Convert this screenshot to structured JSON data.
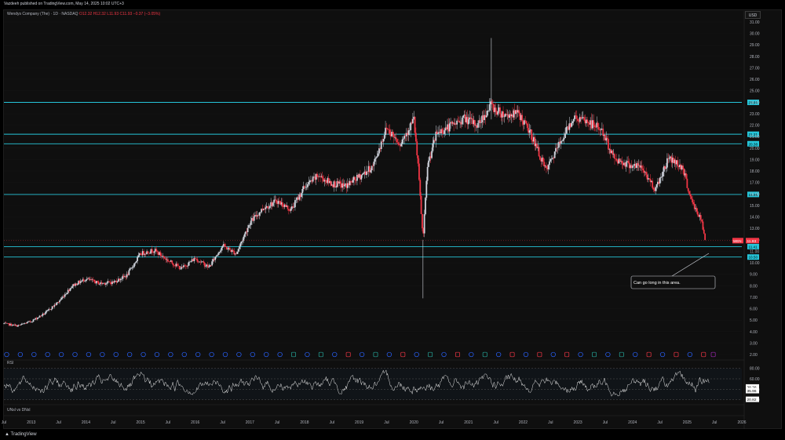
{
  "header": {
    "caption": "Vazdeeh published on TradingView.com, May 14, 2025 10:02 UTC+3",
    "symbol": "Wendys Company (The) · 1D · NASDAQ",
    "ohlc": "O12.32 H12.32 L11.93 C11.93 −0.37 (−3.05%)",
    "currency_button": "USD"
  },
  "colors": {
    "level_line": "#26c6da",
    "candle_up": "#cfd3dc",
    "candle_down": "#f23645",
    "price_tag": "#f23645",
    "rsi_line": "#e6e6e6"
  },
  "icons": [
    "tradingview-logo-icon"
  ],
  "footer": {
    "brand": "TradingView",
    "rsi_label": "RSI",
    "lower_pane_label": "UNsl vs DNsl"
  },
  "annotation": {
    "text": "Can go long in this area."
  },
  "price_axis": {
    "ticks": [
      "31.00",
      "30.00",
      "29.00",
      "28.00",
      "27.00",
      "26.00",
      "25.00",
      "24.00",
      "23.00",
      "22.00",
      "21.00",
      "20.00",
      "19.00",
      "18.00",
      "17.00",
      "16.00",
      "15.00",
      "14.00",
      "13.00",
      "12.00",
      "11.00",
      "10.00",
      "9.00",
      "8.00",
      "7.00",
      "6.00",
      "5.00",
      "4.00",
      "3.00",
      "2.00"
    ],
    "current_price_label": "11.93",
    "current_symbol_tag": "WEN"
  },
  "rsi_axis": {
    "ticks": [
      "80.00",
      "60.00",
      "40.00",
      "20.00"
    ],
    "value_labels": [
      "38.38",
      "35.96",
      "20.82"
    ]
  },
  "time_axis": {
    "labels": [
      "Jul",
      "2013",
      "Jul",
      "2014",
      "Jul",
      "2015",
      "Jul",
      "2016",
      "Jul",
      "2017",
      "Jul",
      "2018",
      "Jul",
      "2019",
      "Jul",
      "2020",
      "Jul",
      "2021",
      "Jul",
      "2022",
      "Jul",
      "2023",
      "Jul",
      "2024",
      "Jul",
      "2025",
      "Jul",
      "2026"
    ]
  },
  "chart_data": {
    "type": "line",
    "title": "Wendys Company (The) · 1D · NASDAQ",
    "xlabel": "",
    "ylabel": "",
    "ylim": [
      2,
      31
    ],
    "x_range": [
      "2012-07",
      "2026-01"
    ],
    "price_series": {
      "x": [
        "2012-07",
        "2012-10",
        "2013-01",
        "2013-04",
        "2013-07",
        "2013-10",
        "2014-01",
        "2014-04",
        "2014-07",
        "2014-10",
        "2015-01",
        "2015-04",
        "2015-07",
        "2015-10",
        "2016-01",
        "2016-04",
        "2016-07",
        "2016-10",
        "2017-01",
        "2017-04",
        "2017-07",
        "2017-10",
        "2018-01",
        "2018-04",
        "2018-07",
        "2018-10",
        "2019-01",
        "2019-04",
        "2019-07",
        "2019-10",
        "2020-01",
        "2020-02",
        "2020-03",
        "2020-04",
        "2020-06",
        "2020-09",
        "2020-12",
        "2021-03",
        "2021-06",
        "2021-07",
        "2021-09",
        "2021-12",
        "2022-03",
        "2022-06",
        "2022-09",
        "2022-12",
        "2023-03",
        "2023-06",
        "2023-09",
        "2023-12",
        "2024-03",
        "2024-06",
        "2024-09",
        "2024-12",
        "2025-02",
        "2025-04",
        "2025-05"
      ],
      "values": [
        4.7,
        4.5,
        4.9,
        5.6,
        6.6,
        8.0,
        8.6,
        8.2,
        8.3,
        8.9,
        10.8,
        11.1,
        10.2,
        9.5,
        10.4,
        9.6,
        11.5,
        10.8,
        13.5,
        14.8,
        15.4,
        14.6,
        16.6,
        17.6,
        16.9,
        16.7,
        17.5,
        18.4,
        21.8,
        20.4,
        22.5,
        18.0,
        12.0,
        18.5,
        21.3,
        21.9,
        22.6,
        22.0,
        23.8,
        23.3,
        22.9,
        23.0,
        21.0,
        18.0,
        20.4,
        22.7,
        22.3,
        21.7,
        19.1,
        18.6,
        18.3,
        16.4,
        19.2,
        18.3,
        15.3,
        13.8,
        11.93
      ]
    },
    "horizontal_levels": [
      23.99,
      21.21,
      20.38,
      15.96,
      11.41,
      10.5
    ],
    "level_labels": [
      "23.99",
      "21.21",
      "20.38",
      "15.96",
      "11.41",
      "10.50"
    ],
    "rsi_series": {
      "name": "RSI",
      "ylim": [
        15,
        90
      ],
      "reference_lines": [
        80,
        60,
        40,
        20
      ]
    }
  }
}
